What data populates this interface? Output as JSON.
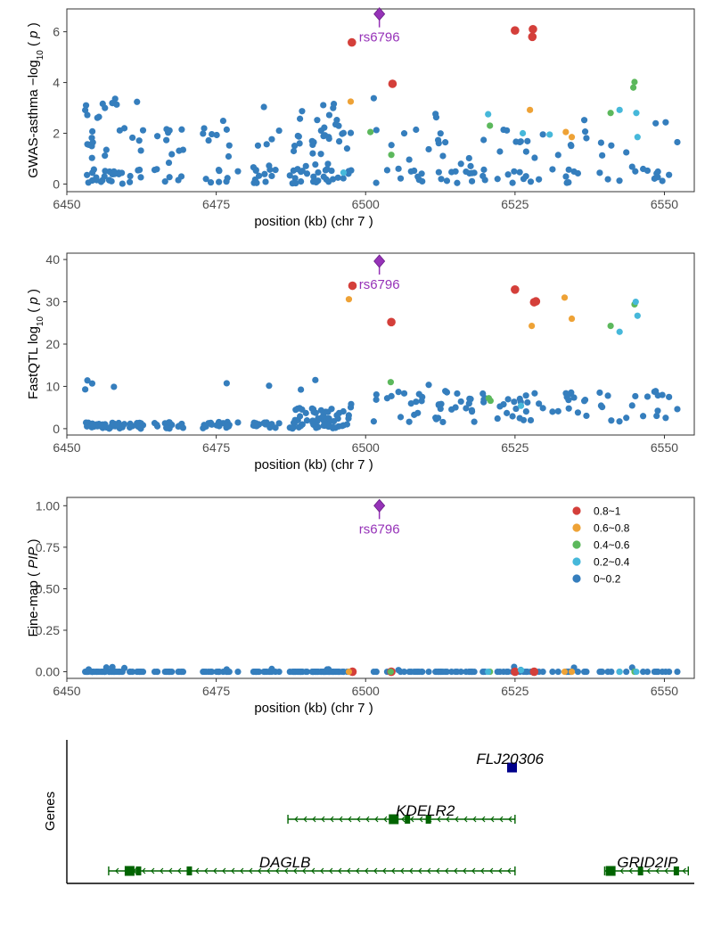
{
  "colors": {
    "0.8~1": "#D43F3A",
    "0.6~0.8": "#EEA236",
    "0.4~0.6": "#5CB85C",
    "0.2~0.4": "#46B8DA",
    "0~0.2": "#357EBD",
    "lead": "#9632B8",
    "gene": "#006400",
    "gene_alt": "#00008B"
  },
  "legend": {
    "placement": "top-right of fine-map panel",
    "entries": [
      "0.8~1",
      "0.6~0.8",
      "0.4~0.6",
      "0.2~0.4",
      "0~0.2"
    ]
  },
  "chart_data": [
    {
      "type": "scatter",
      "ylabel_main": "GWAS-asthma",
      "ylabel_func": "−log",
      "ylabel_sub": "10",
      "ylabel_arg": "p",
      "xlabel": "position (kb) (chr 7 )",
      "xlim": [
        6450,
        6555
      ],
      "ylim": [
        -0.3,
        6.9
      ],
      "xticks": [
        6450,
        6475,
        6500,
        6525,
        6550
      ],
      "yticks": [
        0,
        2,
        4,
        6
      ],
      "lead_snp": {
        "label": "rs6796",
        "x": 6502.3,
        "y": 6.7
      },
      "highlighted_points": [
        {
          "x": 6497.7,
          "y": 5.58,
          "ld": "0.8~1"
        },
        {
          "x": 6504.5,
          "y": 3.95,
          "ld": "0.8~1"
        },
        {
          "x": 6525.0,
          "y": 6.05,
          "ld": "0.8~1"
        },
        {
          "x": 6528.0,
          "y": 6.1,
          "ld": "0.8~1"
        },
        {
          "x": 6527.9,
          "y": 5.8,
          "ld": "0.8~1"
        },
        {
          "x": 6497.5,
          "y": 3.25,
          "ld": "0.6~0.8"
        },
        {
          "x": 6527.5,
          "y": 2.92,
          "ld": "0.6~0.8"
        },
        {
          "x": 6533.5,
          "y": 2.05,
          "ld": "0.6~0.8"
        },
        {
          "x": 6534.5,
          "y": 1.85,
          "ld": "0.6~0.8"
        },
        {
          "x": 6500.8,
          "y": 2.05,
          "ld": "0.4~0.6"
        },
        {
          "x": 6504.3,
          "y": 1.15,
          "ld": "0.4~0.6"
        },
        {
          "x": 6520.8,
          "y": 2.3,
          "ld": "0.4~0.6"
        },
        {
          "x": 6541.0,
          "y": 2.8,
          "ld": "0.4~0.6"
        },
        {
          "x": 6544.8,
          "y": 3.8,
          "ld": "0.4~0.6"
        },
        {
          "x": 6545.0,
          "y": 4.02,
          "ld": "0.4~0.6"
        },
        {
          "x": 6496.3,
          "y": 0.45,
          "ld": "0.2~0.4"
        },
        {
          "x": 6520.5,
          "y": 2.75,
          "ld": "0.2~0.4"
        },
        {
          "x": 6526.3,
          "y": 2.0,
          "ld": "0.2~0.4"
        },
        {
          "x": 6530.8,
          "y": 1.95,
          "ld": "0.2~0.4"
        },
        {
          "x": 6542.5,
          "y": 2.92,
          "ld": "0.2~0.4"
        },
        {
          "x": 6545.3,
          "y": 2.8,
          "ld": "0.2~0.4"
        },
        {
          "x": 6545.5,
          "y": 1.85,
          "ld": "0.2~0.4"
        }
      ]
    },
    {
      "type": "scatter",
      "ylabel_main": "FastQTL",
      "ylabel_func": "log",
      "ylabel_sub": "10",
      "ylabel_arg": "p",
      "xlabel": "position (kb) (chr 7 )",
      "xlim": [
        6450,
        6555
      ],
      "ylim": [
        -1.5,
        41.5
      ],
      "xticks": [
        6450,
        6475,
        6500,
        6525,
        6550
      ],
      "yticks": [
        0,
        10,
        20,
        30,
        40
      ],
      "lead_snp": {
        "label": "rs6796",
        "x": 6502.3,
        "y": 39.6
      },
      "highlighted_points": [
        {
          "x": 6497.8,
          "y": 33.8,
          "ld": "0.8~1"
        },
        {
          "x": 6504.3,
          "y": 25.2,
          "ld": "0.8~1"
        },
        {
          "x": 6525.0,
          "y": 32.9,
          "ld": "0.8~1"
        },
        {
          "x": 6528.2,
          "y": 29.9,
          "ld": "0.8~1"
        },
        {
          "x": 6528.5,
          "y": 30.1,
          "ld": "0.8~1"
        },
        {
          "x": 6497.2,
          "y": 30.6,
          "ld": "0.6~0.8"
        },
        {
          "x": 6527.8,
          "y": 24.3,
          "ld": "0.6~0.8"
        },
        {
          "x": 6533.3,
          "y": 31.0,
          "ld": "0.6~0.8"
        },
        {
          "x": 6534.5,
          "y": 26.0,
          "ld": "0.6~0.8"
        },
        {
          "x": 6504.2,
          "y": 11.0,
          "ld": "0.4~0.6"
        },
        {
          "x": 6520.6,
          "y": 7.2,
          "ld": "0.4~0.6"
        },
        {
          "x": 6520.9,
          "y": 6.6,
          "ld": "0.4~0.6"
        },
        {
          "x": 6541.0,
          "y": 24.3,
          "ld": "0.4~0.6"
        },
        {
          "x": 6545.0,
          "y": 29.4,
          "ld": "0.4~0.6"
        },
        {
          "x": 6542.5,
          "y": 22.9,
          "ld": "0.2~0.4"
        },
        {
          "x": 6545.2,
          "y": 30.0,
          "ld": "0.2~0.4"
        },
        {
          "x": 6545.5,
          "y": 26.7,
          "ld": "0.2~0.4"
        },
        {
          "x": 6526.0,
          "y": 5.4,
          "ld": "0.2~0.4"
        }
      ]
    },
    {
      "type": "scatter",
      "ylabel_main": "Fine-map",
      "ylabel_func": "",
      "ylabel_sub": "",
      "ylabel_arg": "PIP",
      "xlabel": "position (kb) (chr 7 )",
      "xlim": [
        6450,
        6555
      ],
      "ylim": [
        -0.04,
        1.05
      ],
      "xticks": [
        6450,
        6475,
        6500,
        6525,
        6550
      ],
      "yticks": [
        0.0,
        0.25,
        0.5,
        0.75,
        1.0
      ],
      "ytick_labels": [
        "0.00",
        "0.25",
        "0.50",
        "0.75",
        "1.00"
      ],
      "lead_snp": {
        "label": "rs6796",
        "x": 6502.3,
        "y": 1.0
      },
      "highlighted_points": [
        {
          "x": 6497.8,
          "y": 0.0,
          "ld": "0.8~1"
        },
        {
          "x": 6504.3,
          "y": 0.0,
          "ld": "0.8~1"
        },
        {
          "x": 6525.0,
          "y": 0.0,
          "ld": "0.8~1"
        },
        {
          "x": 6528.2,
          "y": 0.0,
          "ld": "0.8~1"
        },
        {
          "x": 6497.2,
          "y": 0.0,
          "ld": "0.6~0.8"
        },
        {
          "x": 6533.3,
          "y": 0.0,
          "ld": "0.6~0.8"
        },
        {
          "x": 6534.5,
          "y": 0.0,
          "ld": "0.6~0.8"
        },
        {
          "x": 6504.2,
          "y": 0.0,
          "ld": "0.4~0.6"
        },
        {
          "x": 6520.8,
          "y": 0.0,
          "ld": "0.4~0.6"
        },
        {
          "x": 6545.0,
          "y": 0.0,
          "ld": "0.4~0.6"
        },
        {
          "x": 6520.5,
          "y": 0.0,
          "ld": "0.2~0.4"
        },
        {
          "x": 6526.0,
          "y": 0.01,
          "ld": "0.2~0.4"
        },
        {
          "x": 6542.5,
          "y": 0.0,
          "ld": "0.2~0.4"
        },
        {
          "x": 6545.3,
          "y": 0.0,
          "ld": "0.2~0.4"
        }
      ]
    },
    {
      "type": "gene_track",
      "ylabel": "Genes",
      "xlim": [
        6450,
        6555
      ],
      "genes": [
        {
          "name": "FLJ20306",
          "start": 6524.0,
          "end": 6525.0,
          "row": 3,
          "strand": "+",
          "color_key": "gene_alt",
          "exons": [
            6524.5
          ]
        },
        {
          "name": "KDELR2",
          "start": 6487.0,
          "end": 6525.0,
          "row": 2,
          "strand": "-",
          "color_key": "gene",
          "exons": [
            6504.7,
            6507.0,
            6510.5
          ]
        },
        {
          "name": "DAGLB",
          "start": 6457.0,
          "end": 6525.0,
          "row": 1,
          "strand": "-",
          "color_key": "gene",
          "exons": [
            6460.5,
            6462.0,
            6470.5
          ]
        },
        {
          "name": "GRID2IP",
          "start": 6540.0,
          "end": 6554.0,
          "row": 1,
          "strand": "-",
          "color_key": "gene",
          "exons": [
            6541.0,
            6546.0,
            6552.0
          ]
        }
      ]
    }
  ]
}
